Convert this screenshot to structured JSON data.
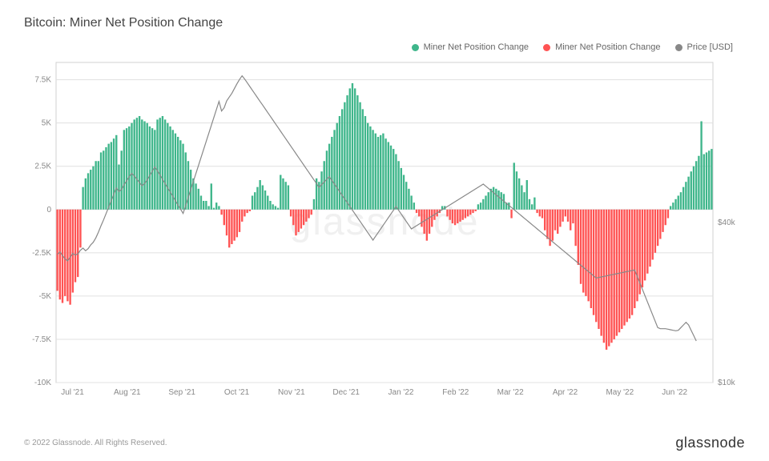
{
  "chart": {
    "title": "Bitcoin: Miner Net Position Change",
    "type": "bar+line",
    "background_color": "#ffffff",
    "grid_color": "#e0e0e0",
    "border_color": "#d0d0d0",
    "title_fontsize": 16,
    "axis_fontsize": 10,
    "legend_fontsize": 11,
    "legend": [
      {
        "label": "Miner Net Position Change",
        "color": "#3fb68b",
        "type": "bar-positive"
      },
      {
        "label": "Miner Net Position Change",
        "color": "#ff5353",
        "type": "bar-negative"
      },
      {
        "label": "Price [USD]",
        "color": "#888888",
        "type": "line"
      }
    ],
    "y_axis_left": {
      "min": -10000,
      "max": 8500,
      "ticks": [
        -10000,
        -7500,
        -5000,
        -2500,
        0,
        2500,
        5000,
        7500
      ],
      "tick_labels": [
        "-10K",
        "-7.5K",
        "-5K",
        "-2.5K",
        "0",
        "2.5K",
        "5K",
        "7.5K"
      ]
    },
    "y_axis_right": {
      "min": 10000,
      "max": 70000,
      "ticks": [
        10000,
        40000
      ],
      "tick_labels": [
        "$10k",
        "$40k"
      ]
    },
    "x_axis": {
      "categories": [
        "Jul '21",
        "Aug '21",
        "Sep '21",
        "Oct '21",
        "Nov '21",
        "Dec '21",
        "Jan '22",
        "Feb '22",
        "Mar '22",
        "Apr '22",
        "May '22",
        "Jun '22"
      ]
    },
    "bars": {
      "positive_color": "#3fb68b",
      "negative_color": "#ff5353",
      "width": 2.0,
      "gap": 0.7,
      "values": [
        -4700,
        -5200,
        -5400,
        -5000,
        -5300,
        -5500,
        -4800,
        -4200,
        -3900,
        -2200,
        1300,
        1800,
        2100,
        2300,
        2500,
        2800,
        2800,
        3300,
        3400,
        3600,
        3800,
        3900,
        4100,
        4300,
        2600,
        3400,
        4600,
        4700,
        4800,
        5000,
        5200,
        5300,
        5400,
        5200,
        5100,
        5000,
        4800,
        4700,
        4600,
        5200,
        5300,
        5400,
        5200,
        5000,
        4800,
        4600,
        4400,
        4200,
        4000,
        3800,
        3300,
        2800,
        2300,
        1800,
        1500,
        1200,
        800,
        500,
        500,
        200,
        1500,
        100,
        400,
        200,
        -300,
        -900,
        -1500,
        -2200,
        -2000,
        -1800,
        -1600,
        -1300,
        -700,
        -400,
        -200,
        -100,
        800,
        1000,
        1300,
        1700,
        1400,
        1100,
        800,
        500,
        300,
        200,
        100,
        2000,
        1800,
        1600,
        1400,
        -400,
        -900,
        -1500,
        -1300,
        -1100,
        -900,
        -700,
        -500,
        -300,
        600,
        1800,
        1600,
        2200,
        2800,
        3400,
        3800,
        4200,
        4600,
        5000,
        5400,
        5800,
        6200,
        6600,
        7000,
        7300,
        7000,
        6600,
        6200,
        5800,
        5400,
        5000,
        4800,
        4600,
        4400,
        4200,
        4300,
        4400,
        4100,
        3900,
        3700,
        3500,
        3200,
        2800,
        2400,
        2000,
        1600,
        1200,
        800,
        400,
        -200,
        -400,
        -1000,
        -1400,
        -1800,
        -1400,
        -1000,
        -600,
        -400,
        -200,
        200,
        200,
        -400,
        -600,
        -800,
        -900,
        -800,
        -700,
        -600,
        -500,
        -400,
        -300,
        -200,
        -100,
        300,
        400,
        600,
        800,
        1000,
        1200,
        1300,
        1200,
        1100,
        1000,
        900,
        400,
        400,
        -500,
        2700,
        2200,
        1800,
        1400,
        1000,
        1700,
        600,
        300,
        700,
        -200,
        -400,
        -500,
        -1200,
        -1700,
        -2100,
        -1800,
        -1200,
        -1400,
        -1000,
        -700,
        -400,
        -700,
        -1200,
        -800,
        -2100,
        -3200,
        -4300,
        -4800,
        -5000,
        -5300,
        -5700,
        -6100,
        -6500,
        -6900,
        -7300,
        -7700,
        -8100,
        -7900,
        -7700,
        -7500,
        -7300,
        -7100,
        -6900,
        -6700,
        -6500,
        -6300,
        -6100,
        -5700,
        -5300,
        -4900,
        -4500,
        -4100,
        -3700,
        -3300,
        -2900,
        -2500,
        -2100,
        -1700,
        -1300,
        -900,
        -500,
        200,
        400,
        600,
        800,
        1000,
        1300,
        1600,
        1900,
        2200,
        2500,
        2800,
        3100,
        5100,
        3200,
        3300,
        3400,
        3500
      ]
    },
    "price_line": {
      "color": "#888888",
      "width": 1.2,
      "values": [
        34000,
        34500,
        33800,
        33200,
        32800,
        33500,
        34200,
        33900,
        34100,
        34800,
        35200,
        34700,
        35100,
        35800,
        36300,
        37100,
        38200,
        39400,
        40500,
        41700,
        42900,
        44100,
        45300,
        46500,
        45800,
        46200,
        47100,
        47800,
        48600,
        49200,
        48700,
        48100,
        47500,
        46900,
        47300,
        48000,
        48800,
        49600,
        50400,
        49700,
        48900,
        48100,
        47300,
        46500,
        45700,
        44900,
        44100,
        43300,
        42500,
        41700,
        43200,
        44700,
        46200,
        47700,
        49200,
        50700,
        52200,
        53700,
        55200,
        56700,
        58200,
        59700,
        61200,
        62700,
        60900,
        61500,
        62800,
        63500,
        64200,
        65100,
        66000,
        66800,
        67500,
        66900,
        66200,
        65500,
        64800,
        64100,
        63400,
        62700,
        62000,
        61300,
        60600,
        59900,
        59200,
        58500,
        57800,
        57100,
        56400,
        55700,
        55000,
        54300,
        53600,
        52900,
        52200,
        51500,
        50800,
        50100,
        49400,
        48700,
        48000,
        47300,
        46600,
        47100,
        47600,
        48100,
        48600,
        47900,
        47200,
        46500,
        45800,
        45100,
        44400,
        43700,
        43000,
        42300,
        41600,
        40900,
        40200,
        39500,
        38800,
        38100,
        37400,
        36700,
        37400,
        38100,
        38800,
        39500,
        40200,
        40900,
        41600,
        42300,
        43000,
        42300,
        41600,
        40900,
        40200,
        39500,
        38800,
        39100,
        39400,
        39700,
        40000,
        40300,
        40600,
        40900,
        41200,
        41500,
        41800,
        42100,
        42400,
        42700,
        43000,
        43300,
        43600,
        43900,
        44200,
        44500,
        44800,
        45100,
        45400,
        45700,
        46000,
        46300,
        46600,
        46900,
        47200,
        46800,
        46400,
        46000,
        45600,
        45200,
        44800,
        44400,
        44000,
        43600,
        43200,
        42800,
        42400,
        42000,
        41600,
        41200,
        40800,
        40400,
        40000,
        39600,
        39200,
        38800,
        38400,
        38000,
        37600,
        37200,
        36800,
        36400,
        36000,
        35600,
        35200,
        34800,
        34400,
        34000,
        33600,
        33200,
        32800,
        32400,
        32000,
        31600,
        31200,
        30800,
        30400,
        30000,
        29600,
        29700,
        29800,
        29900,
        30000,
        30100,
        30200,
        30300,
        30400,
        30500,
        30600,
        30700,
        30800,
        30900,
        31000,
        31100,
        29900,
        28700,
        27500,
        26300,
        25100,
        23900,
        22700,
        21500,
        20300,
        20100,
        20100,
        20100,
        20000,
        19900,
        19800,
        19700,
        19800,
        20300,
        20800,
        21300,
        20800,
        19800,
        18800,
        17800
      ]
    },
    "watermark_text": "glassnode",
    "watermark_color": "#f0f0f0",
    "copyright": "© 2022 Glassnode. All Rights Reserved.",
    "brand": "glassnode"
  }
}
